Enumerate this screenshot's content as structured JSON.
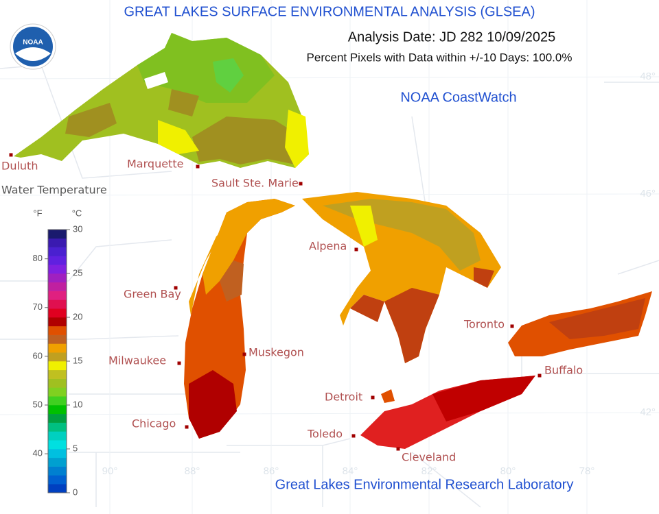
{
  "header": {
    "title": "GREAT LAKES SURFACE ENVIRONMENTAL ANALYSIS (GLSEA)",
    "analysis_date": "Analysis Date:  JD 282 10/09/2025",
    "coverage": "Percent Pixels with Data within +/-10 Days: 100.0%",
    "logo": "NOAA",
    "credit": "NOAA CoastWatch"
  },
  "footer": "Great Lakes Environmental Research Laboratory",
  "cities": [
    "Duluth",
    "Marquette",
    "Sault Ste. Marie",
    "Alpena",
    "Green Bay",
    "Milwaukee",
    "Muskegon",
    "Chicago",
    "Detroit",
    "Toledo",
    "Cleveland",
    "Toronto",
    "Buffalo"
  ],
  "graticule": {
    "lon_labels": [
      "90°",
      "88°",
      "86°",
      "84°",
      "82°",
      "80°",
      "78°"
    ],
    "lat_labels": [
      "48°",
      "46°",
      "42°"
    ]
  },
  "colorbar": {
    "title": "Water Temperature",
    "f_unit": "°F",
    "c_unit": "°C",
    "c_lim": [
      0,
      30
    ],
    "f_lim": [
      32,
      86
    ],
    "c_ticks": [
      0,
      5,
      10,
      15,
      20,
      25,
      30
    ],
    "f_ticks": [
      40,
      50,
      60,
      70,
      80
    ],
    "colors": [
      "#0040c0",
      "#0060d0",
      "#0080d0",
      "#00a0d0",
      "#00c0e0",
      "#00e0e0",
      "#00d0c0",
      "#00c080",
      "#00a040",
      "#00c000",
      "#40d020",
      "#80d020",
      "#a0c020",
      "#c0c020",
      "#f0f000",
      "#c0a020",
      "#f0a000",
      "#c06020",
      "#e05000",
      "#b00000",
      "#e00020",
      "#e01050",
      "#e02080",
      "#c020a0",
      "#a020c0",
      "#8020e0",
      "#6020e0",
      "#4a20d0",
      "#3a1ab0",
      "#1a1a6e"
    ]
  }
}
